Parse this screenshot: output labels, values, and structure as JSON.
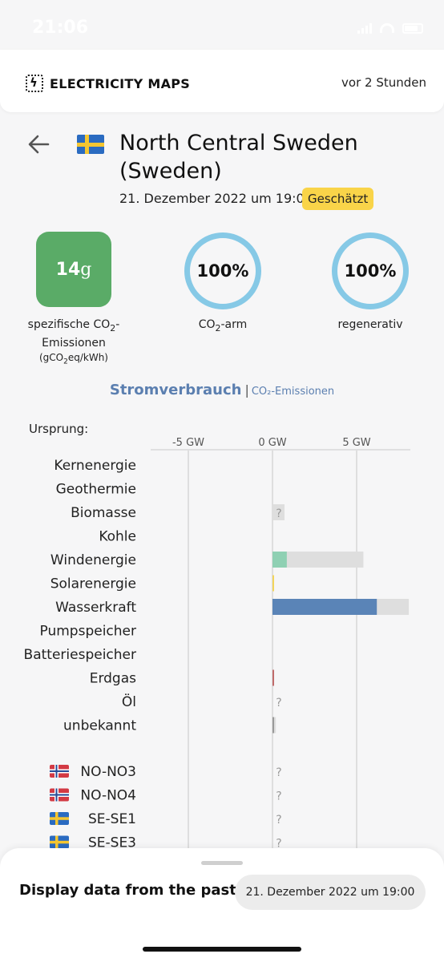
{
  "status_bar": {
    "time": "21:06"
  },
  "header": {
    "logo_text": "ELECTRICITY MAPS",
    "updated": "vor 2 Stunden"
  },
  "zone": {
    "title": "North Central Sweden (Sweden)",
    "date": "21. Dezember 2022 um 19:00",
    "badge": "Geschätzt"
  },
  "metrics": {
    "intensity_value": "14",
    "intensity_unit": "g",
    "intensity_color": "#5aab67",
    "intensity_label_1": "spezifische CO",
    "intensity_label_1_sub": "2",
    "intensity_label_1_tail": "-",
    "intensity_label_2": "Emissionen",
    "intensity_unit_a": "(gCO",
    "intensity_unit_sub": "2",
    "intensity_unit_b": "eq/kWh)",
    "low_carbon_value": "100%",
    "low_carbon_label_a": "CO",
    "low_carbon_label_sub": "2",
    "low_carbon_label_b": "-arm",
    "renewable_value": "100%",
    "renewable_label": "regenerativ",
    "ring_color": "#86c9e6"
  },
  "mode_switch": {
    "active": "Stromverbrauch",
    "separator": "|",
    "other": "CO₂-Emissionen"
  },
  "chart_data": {
    "type": "bar",
    "origin_label": "Ursprung:",
    "x_ticks": [
      {
        "label": "-5 GW",
        "value": -5
      },
      {
        "label": "0 GW",
        "value": 0
      },
      {
        "label": "5 GW",
        "value": 5
      }
    ],
    "xlim": [
      -10,
      8.1
    ],
    "grid": true,
    "categories": [
      {
        "label": "Kernenergie"
      },
      {
        "label": "Geothermie"
      },
      {
        "label": "Biomasse",
        "unknown": true,
        "gray_box": true
      },
      {
        "label": "Kohle"
      },
      {
        "label": "Windenergie",
        "production": 0.85,
        "capacity": 5.4,
        "color": "#8fd0b3"
      },
      {
        "label": "Solarenergie",
        "production": 0,
        "capacity": 0.08,
        "color": "#f3d55b"
      },
      {
        "label": "Wasserkraft",
        "production": 6.2,
        "capacity": 8.1,
        "color": "#5a84b7"
      },
      {
        "label": "Pumpspeicher"
      },
      {
        "label": "Batteriespeicher"
      },
      {
        "label": "Erdgas",
        "production": 0,
        "capacity": 0.05,
        "color": "#c06b6b"
      },
      {
        "label": "Öl",
        "unknown": true
      },
      {
        "label": "unbekannt",
        "production": 0,
        "capacity": 0.2,
        "color": "#9a9a9a"
      }
    ],
    "exchanges": [
      {
        "label": "NO-NO3",
        "flag": "no",
        "unknown": true
      },
      {
        "label": "NO-NO4",
        "flag": "no",
        "unknown": true
      },
      {
        "label": "SE-SE1",
        "flag": "se",
        "unknown": true
      },
      {
        "label": "SE-SE3",
        "flag": "se",
        "unknown": true
      }
    ],
    "unknown_marker": "?",
    "capacity_color": "#dedede"
  },
  "bottom_sheet": {
    "title": "Display data from the past",
    "date_button": "21. Dezember 2022 um 19:00"
  }
}
